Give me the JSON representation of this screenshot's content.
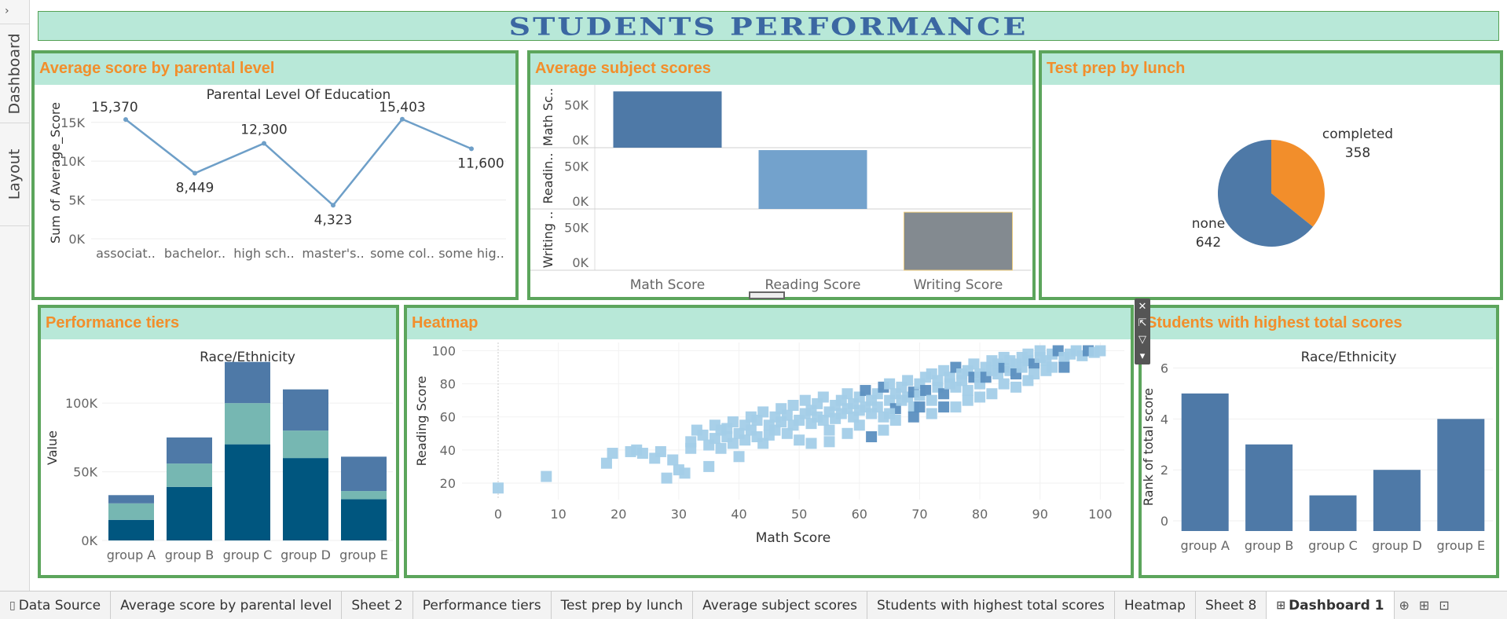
{
  "dashboard_title": "STUDENTS PERFORMANCE",
  "side_panel": {
    "expander": "›",
    "tabs": [
      "Dashboard",
      "Layout"
    ]
  },
  "colors": {
    "accent": "#f28e2b",
    "header_bg": "#b8e8d8",
    "border": "#5ca55c",
    "line": "#6e9fc8",
    "dark_blue": "#4e79a7",
    "teal": "#76b7b2",
    "navy": "#00567f"
  },
  "panels": {
    "parental": {
      "title": "Average score by parental level"
    },
    "subjects": {
      "title": "Average subject scores"
    },
    "testprep": {
      "title": "Test prep by lunch"
    },
    "tiers": {
      "title": "Performance tiers"
    },
    "heatmap": {
      "title": "Heatmap"
    },
    "highest": {
      "title": "Students with highest total scores"
    }
  },
  "chart_data": [
    {
      "id": "parental",
      "type": "line",
      "title": "Parental Level Of Education",
      "ylabel": "Sum of Average_Score",
      "categories": [
        "associat..",
        "bachelor..",
        "high sch..",
        "master's..",
        "some col..",
        "some hig.."
      ],
      "values": [
        15370,
        8449,
        12300,
        4323,
        15403,
        11600
      ],
      "value_labels": [
        "15,370",
        "8,449",
        "12,300",
        "4,323",
        "15,403",
        "11,600"
      ],
      "ylim": [
        0,
        17000
      ],
      "yticks": [
        {
          "v": 0,
          "label": "0K"
        },
        {
          "v": 5000,
          "label": "5K"
        },
        {
          "v": 10000,
          "label": "10K"
        },
        {
          "v": 15000,
          "label": "15K"
        }
      ],
      "color": "#6e9fc8"
    },
    {
      "id": "subjects",
      "type": "bar",
      "categories": [
        "Math Score",
        "Reading Score",
        "Writing Score"
      ],
      "series": [
        {
          "name": "Math Sc..",
          "values": [
            66000,
            0,
            0
          ],
          "color": "#4e79a7"
        },
        {
          "name": "Readin..",
          "values": [
            0,
            69000,
            0
          ],
          "color": "#73a2cc"
        },
        {
          "name": "Writing ..",
          "values": [
            0,
            0,
            68000
          ],
          "color": "#838a90"
        }
      ],
      "ylim": [
        0,
        70000
      ],
      "yticks": [
        {
          "v": 0,
          "label": "0K"
        },
        {
          "v": 50000,
          "label": "50K"
        }
      ]
    },
    {
      "id": "testprep",
      "type": "pie",
      "slices": [
        {
          "label": "completed",
          "value": 358,
          "color": "#f28e2b"
        },
        {
          "label": "none",
          "value": 642,
          "color": "#4e79a7"
        }
      ]
    },
    {
      "id": "tiers",
      "type": "bar",
      "title": "Race/Ethnicity",
      "ylabel": "Value",
      "categories": [
        "group A",
        "group B",
        "group C",
        "group D",
        "group E"
      ],
      "stack_order": [
        "bottom",
        "middle",
        "top"
      ],
      "series": [
        {
          "values": [
            15000,
            39000,
            70000,
            60000,
            30000
          ],
          "color": "#00567f"
        },
        {
          "values": [
            12000,
            17000,
            30000,
            20000,
            6000
          ],
          "color": "#76b7b2"
        },
        {
          "values": [
            6000,
            19000,
            30000,
            30000,
            25000
          ],
          "color": "#4e79a7"
        }
      ],
      "ylim": [
        0,
        135000
      ],
      "yticks": [
        {
          "v": 0,
          "label": "0K"
        },
        {
          "v": 50000,
          "label": "50K"
        },
        {
          "v": 100000,
          "label": "100K"
        }
      ]
    },
    {
      "id": "heatmap",
      "type": "scatter",
      "xlabel": "Math Score",
      "ylabel": "Reading Score",
      "xlim": [
        -6,
        104
      ],
      "ylim": [
        10,
        105
      ],
      "xticks": [
        0,
        10,
        20,
        30,
        40,
        50,
        60,
        70,
        80,
        90,
        100
      ],
      "yticks": [
        20,
        40,
        60,
        80,
        100
      ],
      "points": [
        [
          0,
          17
        ],
        [
          8,
          24
        ],
        [
          18,
          32
        ],
        [
          19,
          38
        ],
        [
          22,
          39
        ],
        [
          23,
          40
        ],
        [
          24,
          38
        ],
        [
          26,
          35
        ],
        [
          27,
          39
        ],
        [
          28,
          23
        ],
        [
          29,
          34
        ],
        [
          30,
          28
        ],
        [
          31,
          26
        ],
        [
          32,
          41
        ],
        [
          32,
          45
        ],
        [
          33,
          52
        ],
        [
          34,
          49
        ],
        [
          35,
          43
        ],
        [
          35,
          30
        ],
        [
          36,
          55
        ],
        [
          36,
          47
        ],
        [
          37,
          41
        ],
        [
          37,
          52
        ],
        [
          38,
          48
        ],
        [
          38,
          53
        ],
        [
          39,
          44
        ],
        [
          39,
          57
        ],
        [
          40,
          50
        ],
        [
          40,
          36
        ],
        [
          41,
          55
        ],
        [
          41,
          46
        ],
        [
          42,
          60
        ],
        [
          42,
          52
        ],
        [
          43,
          48
        ],
        [
          43,
          58
        ],
        [
          44,
          44
        ],
        [
          44,
          63
        ],
        [
          45,
          55
        ],
        [
          45,
          49
        ],
        [
          46,
          60
        ],
        [
          46,
          52
        ],
        [
          47,
          57
        ],
        [
          47,
          65
        ],
        [
          48,
          50
        ],
        [
          48,
          61
        ],
        [
          49,
          55
        ],
        [
          49,
          67
        ],
        [
          50,
          58
        ],
        [
          50,
          46
        ],
        [
          51,
          62
        ],
        [
          51,
          70
        ],
        [
          52,
          56
        ],
        [
          52,
          64
        ],
        [
          53,
          60
        ],
        [
          53,
          68
        ],
        [
          54,
          58
        ],
        [
          54,
          72
        ],
        [
          55,
          63
        ],
        [
          55,
          52
        ],
        [
          56,
          67
        ],
        [
          56,
          59
        ],
        [
          57,
          70
        ],
        [
          57,
          62
        ],
        [
          58,
          65
        ],
        [
          58,
          74
        ],
        [
          59,
          60
        ],
        [
          59,
          68
        ],
        [
          60,
          72
        ],
        [
          60,
          55
        ],
        [
          61,
          66
        ],
        [
          61,
          76
        ],
        [
          62,
          70
        ],
        [
          62,
          62
        ],
        [
          63,
          74
        ],
        [
          63,
          66
        ],
        [
          64,
          78
        ],
        [
          64,
          60
        ],
        [
          65,
          70
        ],
        [
          65,
          80
        ],
        [
          66,
          74
        ],
        [
          66,
          65
        ],
        [
          67,
          78
        ],
        [
          67,
          70
        ],
        [
          68,
          82
        ],
        [
          68,
          72
        ],
        [
          69,
          75
        ],
        [
          69,
          66
        ],
        [
          70,
          80
        ],
        [
          70,
          73
        ],
        [
          71,
          84
        ],
        [
          71,
          76
        ],
        [
          72,
          70
        ],
        [
          72,
          86
        ],
        [
          73,
          78
        ],
        [
          73,
          82
        ],
        [
          74,
          74
        ],
        [
          74,
          88
        ],
        [
          75,
          80
        ],
        [
          75,
          84
        ],
        [
          76,
          78
        ],
        [
          76,
          90
        ],
        [
          77,
          82
        ],
        [
          77,
          86
        ],
        [
          78,
          88
        ],
        [
          78,
          76
        ],
        [
          79,
          84
        ],
        [
          79,
          92
        ],
        [
          80,
          86
        ],
        [
          80,
          80
        ],
        [
          81,
          90
        ],
        [
          81,
          84
        ],
        [
          82,
          88
        ],
        [
          82,
          94
        ],
        [
          83,
          86
        ],
        [
          83,
          92
        ],
        [
          84,
          90
        ],
        [
          84,
          96
        ],
        [
          85,
          88
        ],
        [
          85,
          94
        ],
        [
          86,
          92
        ],
        [
          86,
          86
        ],
        [
          87,
          96
        ],
        [
          87,
          90
        ],
        [
          88,
          94
        ],
        [
          88,
          98
        ],
        [
          89,
          92
        ],
        [
          90,
          96
        ],
        [
          90,
          100
        ],
        [
          91,
          94
        ],
        [
          92,
          98
        ],
        [
          93,
          100
        ],
        [
          94,
          96
        ],
        [
          95,
          98
        ],
        [
          96,
          100
        ],
        [
          97,
          97
        ],
        [
          98,
          100
        ],
        [
          99,
          99
        ],
        [
          100,
          100
        ],
        [
          76,
          66
        ],
        [
          72,
          62
        ],
        [
          69,
          60
        ],
        [
          80,
          72
        ],
        [
          84,
          80
        ],
        [
          88,
          82
        ],
        [
          64,
          52
        ],
        [
          62,
          48
        ],
        [
          58,
          50
        ],
        [
          55,
          45
        ],
        [
          52,
          44
        ],
        [
          66,
          58
        ],
        [
          74,
          66
        ],
        [
          78,
          70
        ],
        [
          82,
          74
        ],
        [
          86,
          78
        ],
        [
          92,
          90
        ],
        [
          94,
          90
        ],
        [
          91,
          88
        ],
        [
          89,
          86
        ],
        [
          60,
          64
        ],
        [
          65,
          62
        ],
        [
          70,
          66
        ]
      ]
    },
    {
      "id": "highest",
      "type": "bar",
      "title": "Race/Ethnicity",
      "ylabel": "Rank of total score",
      "categories": [
        "group A",
        "group B",
        "group C",
        "group D",
        "group E"
      ],
      "values": [
        5,
        3,
        1,
        2,
        4
      ],
      "ylim": [
        -0.4,
        6.2
      ],
      "yticks": [
        {
          "v": 0,
          "label": "0"
        },
        {
          "v": 2,
          "label": "2"
        },
        {
          "v": 4,
          "label": "4"
        },
        {
          "v": 6,
          "label": "6"
        }
      ],
      "color": "#4e79a7"
    }
  ],
  "tabs": [
    {
      "label": "Data Source",
      "icon": "database-icon",
      "glyph": "▯",
      "active": false
    },
    {
      "label": "Average score by parental level",
      "active": false
    },
    {
      "label": "Sheet 2",
      "active": false
    },
    {
      "label": "Performance tiers",
      "active": false
    },
    {
      "label": "Test prep by lunch",
      "active": false
    },
    {
      "label": "Average subject scores",
      "active": false
    },
    {
      "label": "Students with highest total scores",
      "active": false
    },
    {
      "label": "Heatmap",
      "active": false
    },
    {
      "label": "Sheet 8",
      "active": false
    },
    {
      "label": "Dashboard 1",
      "icon": "dashboard-grid-icon",
      "glyph": "⊞",
      "active": true
    }
  ],
  "tab_actions": [
    "⊕",
    "⊞",
    "⊡"
  ]
}
